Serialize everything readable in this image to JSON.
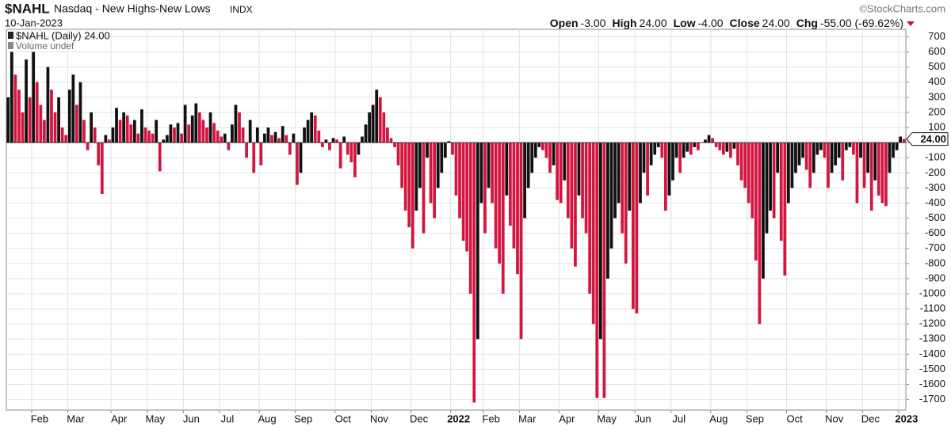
{
  "chart_data": {
    "type": "bar",
    "symbol": "$NAHL",
    "title": "Nasdaq - New Highs-New Lows",
    "exchange": "INDX",
    "source": "©StockCharts.com",
    "date": "10-Jan-2023",
    "quote": {
      "open_label": "Open",
      "open": "-3.00",
      "high_label": "High",
      "high": "24.00",
      "low_label": "Low",
      "low": "-4.00",
      "close_label": "Close",
      "close": "24.00",
      "chg_label": "Chg",
      "chg": "-55.00 (-69.62%)"
    },
    "legend": [
      "$NAHL (Daily) 24.00",
      "Volume undef"
    ],
    "last_value_label": "24.00",
    "up_color": "#111111",
    "down_color": "#d3163f",
    "categories": [
      null,
      null,
      null,
      null,
      null,
      null,
      null,
      "Feb",
      null,
      null,
      null,
      null,
      null,
      null,
      null,
      null,
      null,
      "Mar",
      null,
      null,
      null,
      null,
      null,
      null,
      null,
      null,
      null,
      null,
      null,
      "Apr",
      null,
      null,
      null,
      null,
      null,
      null,
      null,
      null,
      null,
      "May",
      null,
      null,
      null,
      null,
      null,
      null,
      null,
      null,
      null,
      "Jun",
      null,
      null,
      null,
      null,
      null,
      null,
      null,
      null,
      null,
      "Jul",
      null,
      null,
      null,
      null,
      null,
      null,
      null,
      null,
      null,
      null,
      "Aug",
      null,
      null,
      null,
      null,
      null,
      null,
      null,
      null,
      null,
      "Sep",
      null,
      null,
      null,
      null,
      null,
      null,
      null,
      null,
      null,
      null,
      "Oct",
      null,
      null,
      null,
      null,
      null,
      null,
      null,
      null,
      null,
      "Nov",
      null,
      null,
      null,
      null,
      null,
      null,
      null,
      null,
      null,
      null,
      "Dec",
      null,
      null,
      null,
      null,
      null,
      null,
      null,
      null,
      null,
      null,
      "2022",
      null,
      null,
      null,
      null,
      null,
      null,
      null,
      null,
      "Feb",
      null,
      null,
      null,
      null,
      null,
      null,
      null,
      null,
      null,
      "Mar",
      null,
      null,
      null,
      null,
      null,
      null,
      null,
      null,
      null,
      null,
      "Apr",
      null,
      null,
      null,
      null,
      null,
      null,
      null,
      null,
      null,
      null,
      "May",
      null,
      null,
      null,
      null,
      null,
      null,
      null,
      null,
      null,
      "Jun",
      null,
      null,
      null,
      null,
      null,
      null,
      null,
      null,
      null,
      "Jul",
      null,
      null,
      null,
      null,
      null,
      null,
      null,
      null,
      null,
      null,
      "Aug",
      null,
      null,
      null,
      null,
      null,
      null,
      null,
      null,
      null,
      "Sep",
      null,
      null,
      null,
      null,
      null,
      null,
      null,
      null,
      null,
      null,
      "Oct",
      null,
      null,
      null,
      null,
      null,
      null,
      null,
      null,
      null,
      null,
      "Nov",
      null,
      null,
      null,
      null,
      null,
      null,
      null,
      null,
      null,
      "Dec",
      null,
      null,
      null,
      null,
      null,
      null,
      null,
      null,
      null,
      "2023",
      null
    ],
    "values": [
      300,
      600,
      450,
      350,
      200,
      550,
      300,
      600,
      400,
      250,
      150,
      500,
      350,
      200,
      300,
      100,
      50,
      350,
      450,
      250,
      400,
      150,
      -50,
      200,
      100,
      -150,
      -340,
      50,
      20,
      100,
      230,
      150,
      200,
      180,
      120,
      150,
      60,
      220,
      100,
      80,
      60,
      150,
      -190,
      20,
      50,
      120,
      100,
      130,
      60,
      250,
      120,
      180,
      260,
      200,
      150,
      100,
      200,
      130,
      80,
      40,
      60,
      -50,
      120,
      250,
      200,
      100,
      -100,
      150,
      -200,
      100,
      -150,
      60,
      100,
      50,
      70,
      30,
      110,
      50,
      -80,
      60,
      -280,
      -200,
      100,
      150,
      200,
      180,
      80,
      -30,
      20,
      -50,
      30,
      20,
      -170,
      40,
      -80,
      -130,
      -230,
      -80,
      40,
      120,
      200,
      250,
      350,
      300,
      200,
      100,
      30,
      -30,
      -150,
      -300,
      -450,
      -560,
      -700,
      -450,
      -300,
      -600,
      -100,
      -400,
      -500,
      -300,
      -200,
      -100,
      10,
      -80,
      -350,
      -500,
      -650,
      -720,
      -1000,
      -1720,
      -1300,
      -400,
      -600,
      -300,
      -400,
      -700,
      -800,
      -1000,
      -350,
      -550,
      -700,
      -870,
      -1300,
      -500,
      -300,
      -200,
      -100,
      -30,
      -50,
      -100,
      -200,
      -150,
      -380,
      -400,
      -250,
      -500,
      -700,
      -820,
      -350,
      -500,
      -600,
      -1000,
      -1200,
      -1690,
      -1300,
      -1690,
      -900,
      -700,
      -500,
      -400,
      -600,
      -800,
      -450,
      -1100,
      -1130,
      -400,
      -200,
      -350,
      -150,
      -80,
      -30,
      -100,
      -450,
      -350,
      -250,
      -100,
      -200,
      -100,
      -60,
      -80,
      -30,
      -50,
      0,
      20,
      50,
      30,
      -30,
      -50,
      -80,
      -60,
      -100,
      -40,
      -150,
      -250,
      -300,
      -400,
      -500,
      -780,
      -1200,
      -900,
      -600,
      -450,
      -500,
      -200,
      -650,
      -880,
      -400,
      -300,
      -200,
      -150,
      -100,
      -180,
      -300,
      -200,
      -80,
      -50,
      -100,
      -300,
      -200,
      -150,
      -100,
      -250,
      -50,
      -30,
      -80,
      -400,
      -100,
      -300,
      -200,
      -450,
      -250,
      -350,
      -400,
      -420,
      -200,
      -100,
      -50,
      40,
      24
    ],
    "ylim": [
      -1770,
      750
    ],
    "yticks": [
      700,
      600,
      500,
      400,
      300,
      200,
      100,
      0,
      -100,
      -200,
      -300,
      -400,
      -500,
      -600,
      -700,
      -800,
      -900,
      -1000,
      -1100,
      -1200,
      -1300,
      -1400,
      -1500,
      -1600,
      -1700
    ],
    "grid": true
  }
}
